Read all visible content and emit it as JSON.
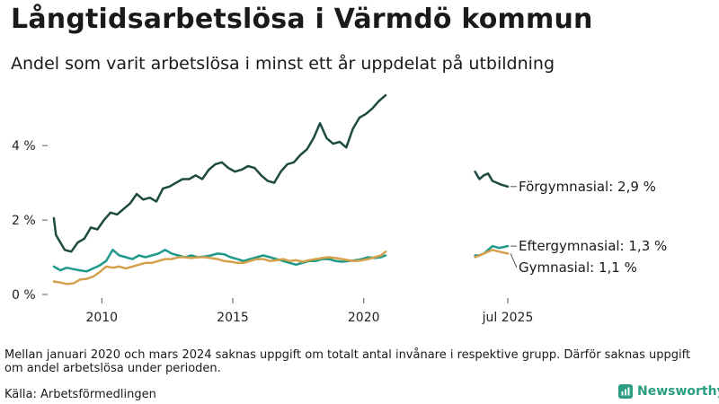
{
  "header": {
    "title": "Långtidsarbetslösa i Värmdö kommun",
    "subtitle": "Andel som varit arbetslösa i minst ett år uppdelat på utbildning"
  },
  "footer": {
    "note": "Mellan januari 2020 och mars 2024 saknas uppgift om totalt antal invånare i respektive grupp. Därför saknas uppgift om andel arbetslösa under perioden.",
    "source": "Källa: Arbetsförmedlingen",
    "brand": "Newsworthy"
  },
  "colors": {
    "forgymnasial": "#1d4a41",
    "eftergymnasial": "#1f9a8a",
    "gymnasial": "#d4a04c",
    "brand": "#2a9d83"
  },
  "chart_data": {
    "type": "line",
    "title": "Långtidsarbetslösa i Värmdö kommun",
    "subtitle": "Andel som varit arbetslösa i minst ett år uppdelat på utbildning",
    "xlabel": "",
    "ylabel": "",
    "xlim": [
      "2008-01",
      "2025-07"
    ],
    "ylim": [
      0,
      5.5
    ],
    "x_ticks": [
      {
        "value": "2010-01",
        "label": "2010"
      },
      {
        "value": "2015-01",
        "label": "2015"
      },
      {
        "value": "2020-01",
        "label": "2020"
      },
      {
        "value": "2025-07",
        "label": "jul 2025"
      }
    ],
    "y_ticks": [
      {
        "value": 0,
        "label": "0 %"
      },
      {
        "value": 2,
        "label": "2 %"
      },
      {
        "value": 4,
        "label": "4 %"
      }
    ],
    "grid": false,
    "legend": "end labels",
    "series": [
      {
        "name": "Förgymnasial",
        "end_label": "Förgymnasial: 2,9 %",
        "color": "#1d4a41",
        "points": [
          [
            "2008-03",
            2.05
          ],
          [
            "2008-04",
            1.6
          ],
          [
            "2008-06",
            1.4
          ],
          [
            "2008-08",
            1.2
          ],
          [
            "2008-11",
            1.15
          ],
          [
            "2009-02",
            1.4
          ],
          [
            "2009-05",
            1.5
          ],
          [
            "2009-08",
            1.8
          ],
          [
            "2009-11",
            1.75
          ],
          [
            "2010-02",
            2.0
          ],
          [
            "2010-05",
            2.2
          ],
          [
            "2010-08",
            2.15
          ],
          [
            "2010-11",
            2.3
          ],
          [
            "2011-02",
            2.45
          ],
          [
            "2011-05",
            2.7
          ],
          [
            "2011-08",
            2.55
          ],
          [
            "2011-11",
            2.6
          ],
          [
            "2012-02",
            2.5
          ],
          [
            "2012-05",
            2.85
          ],
          [
            "2012-08",
            2.9
          ],
          [
            "2012-11",
            3.0
          ],
          [
            "2013-02",
            3.1
          ],
          [
            "2013-05",
            3.1
          ],
          [
            "2013-08",
            3.2
          ],
          [
            "2013-11",
            3.1
          ],
          [
            "2014-02",
            3.35
          ],
          [
            "2014-05",
            3.5
          ],
          [
            "2014-08",
            3.55
          ],
          [
            "2014-11",
            3.4
          ],
          [
            "2015-02",
            3.3
          ],
          [
            "2015-05",
            3.35
          ],
          [
            "2015-08",
            3.45
          ],
          [
            "2015-11",
            3.4
          ],
          [
            "2016-02",
            3.2
          ],
          [
            "2016-05",
            3.05
          ],
          [
            "2016-08",
            3.0
          ],
          [
            "2016-11",
            3.3
          ],
          [
            "2017-02",
            3.5
          ],
          [
            "2017-05",
            3.55
          ],
          [
            "2017-08",
            3.75
          ],
          [
            "2017-11",
            3.9
          ],
          [
            "2018-02",
            4.2
          ],
          [
            "2018-05",
            4.6
          ],
          [
            "2018-08",
            4.2
          ],
          [
            "2018-11",
            4.05
          ],
          [
            "2019-02",
            4.1
          ],
          [
            "2019-05",
            3.95
          ],
          [
            "2019-08",
            4.45
          ],
          [
            "2019-11",
            4.75
          ],
          [
            "2020-02",
            4.85
          ],
          [
            "2020-05",
            5.0
          ],
          [
            "2020-08",
            5.2
          ],
          [
            "2020-11",
            5.35
          ],
          null,
          [
            "2024-04",
            3.3
          ],
          [
            "2024-06",
            3.1
          ],
          [
            "2024-08",
            3.2
          ],
          [
            "2024-10",
            3.25
          ],
          [
            "2024-12",
            3.05
          ],
          [
            "2025-02",
            3.0
          ],
          [
            "2025-04",
            2.95
          ],
          [
            "2025-07",
            2.9
          ]
        ]
      },
      {
        "name": "Eftergymnasial",
        "end_label": "Eftergymnasial: 1,3 %",
        "color": "#1f9a8a",
        "points": [
          [
            "2008-03",
            0.75
          ],
          [
            "2008-06",
            0.65
          ],
          [
            "2008-09",
            0.72
          ],
          [
            "2008-12",
            0.68
          ],
          [
            "2009-03",
            0.65
          ],
          [
            "2009-06",
            0.62
          ],
          [
            "2009-09",
            0.7
          ],
          [
            "2009-12",
            0.78
          ],
          [
            "2010-03",
            0.9
          ],
          [
            "2010-06",
            1.2
          ],
          [
            "2010-09",
            1.05
          ],
          [
            "2010-12",
            1.0
          ],
          [
            "2011-03",
            0.95
          ],
          [
            "2011-06",
            1.05
          ],
          [
            "2011-09",
            1.0
          ],
          [
            "2011-12",
            1.05
          ],
          [
            "2012-03",
            1.1
          ],
          [
            "2012-06",
            1.2
          ],
          [
            "2012-09",
            1.1
          ],
          [
            "2012-12",
            1.05
          ],
          [
            "2013-03",
            1.0
          ],
          [
            "2013-06",
            1.05
          ],
          [
            "2013-09",
            1.0
          ],
          [
            "2013-12",
            1.02
          ],
          [
            "2014-03",
            1.05
          ],
          [
            "2014-06",
            1.1
          ],
          [
            "2014-09",
            1.08
          ],
          [
            "2014-12",
            1.0
          ],
          [
            "2015-03",
            0.95
          ],
          [
            "2015-06",
            0.9
          ],
          [
            "2015-09",
            0.95
          ],
          [
            "2015-12",
            1.0
          ],
          [
            "2016-03",
            1.05
          ],
          [
            "2016-06",
            1.0
          ],
          [
            "2016-09",
            0.95
          ],
          [
            "2016-12",
            0.9
          ],
          [
            "2017-03",
            0.85
          ],
          [
            "2017-06",
            0.8
          ],
          [
            "2017-09",
            0.85
          ],
          [
            "2017-12",
            0.9
          ],
          [
            "2018-03",
            0.9
          ],
          [
            "2018-06",
            0.95
          ],
          [
            "2018-09",
            0.95
          ],
          [
            "2018-12",
            0.9
          ],
          [
            "2019-03",
            0.88
          ],
          [
            "2019-06",
            0.9
          ],
          [
            "2019-09",
            0.92
          ],
          [
            "2019-12",
            0.95
          ],
          [
            "2020-03",
            1.0
          ],
          [
            "2020-06",
            0.98
          ],
          [
            "2020-09",
            1.0
          ],
          [
            "2020-11",
            1.05
          ],
          null,
          [
            "2024-04",
            1.05
          ],
          [
            "2024-06",
            1.05
          ],
          [
            "2024-08",
            1.1
          ],
          [
            "2024-10",
            1.2
          ],
          [
            "2024-12",
            1.3
          ],
          [
            "2025-03",
            1.25
          ],
          [
            "2025-07",
            1.3
          ]
        ]
      },
      {
        "name": "Gymnasial",
        "end_label": "Gymnasial: 1,1 %",
        "color": "#d4a04c",
        "points": [
          [
            "2008-03",
            0.35
          ],
          [
            "2008-06",
            0.32
          ],
          [
            "2008-09",
            0.28
          ],
          [
            "2008-12",
            0.3
          ],
          [
            "2009-03",
            0.4
          ],
          [
            "2009-06",
            0.42
          ],
          [
            "2009-09",
            0.48
          ],
          [
            "2009-12",
            0.6
          ],
          [
            "2010-03",
            0.75
          ],
          [
            "2010-06",
            0.72
          ],
          [
            "2010-09",
            0.75
          ],
          [
            "2010-12",
            0.7
          ],
          [
            "2011-03",
            0.75
          ],
          [
            "2011-06",
            0.8
          ],
          [
            "2011-09",
            0.85
          ],
          [
            "2011-12",
            0.85
          ],
          [
            "2012-03",
            0.9
          ],
          [
            "2012-06",
            0.95
          ],
          [
            "2012-09",
            0.95
          ],
          [
            "2012-12",
            1.0
          ],
          [
            "2013-03",
            1.0
          ],
          [
            "2013-06",
            0.98
          ],
          [
            "2013-09",
            1.0
          ],
          [
            "2013-12",
            1.0
          ],
          [
            "2014-03",
            0.98
          ],
          [
            "2014-06",
            0.95
          ],
          [
            "2014-09",
            0.9
          ],
          [
            "2014-12",
            0.88
          ],
          [
            "2015-03",
            0.85
          ],
          [
            "2015-06",
            0.85
          ],
          [
            "2015-09",
            0.9
          ],
          [
            "2015-12",
            0.95
          ],
          [
            "2016-03",
            0.95
          ],
          [
            "2016-06",
            0.9
          ],
          [
            "2016-09",
            0.92
          ],
          [
            "2016-12",
            0.95
          ],
          [
            "2017-03",
            0.9
          ],
          [
            "2017-06",
            0.92
          ],
          [
            "2017-09",
            0.88
          ],
          [
            "2017-12",
            0.92
          ],
          [
            "2018-03",
            0.95
          ],
          [
            "2018-06",
            0.98
          ],
          [
            "2018-09",
            1.0
          ],
          [
            "2018-12",
            0.98
          ],
          [
            "2019-03",
            0.95
          ],
          [
            "2019-06",
            0.92
          ],
          [
            "2019-09",
            0.9
          ],
          [
            "2019-12",
            0.92
          ],
          [
            "2020-03",
            0.95
          ],
          [
            "2020-06",
            1.0
          ],
          [
            "2020-09",
            1.05
          ],
          [
            "2020-11",
            1.15
          ],
          null,
          [
            "2024-04",
            1.0
          ],
          [
            "2024-06",
            1.05
          ],
          [
            "2024-08",
            1.1
          ],
          [
            "2024-10",
            1.15
          ],
          [
            "2024-12",
            1.2
          ],
          [
            "2025-03",
            1.15
          ],
          [
            "2025-07",
            1.1
          ]
        ]
      }
    ]
  }
}
